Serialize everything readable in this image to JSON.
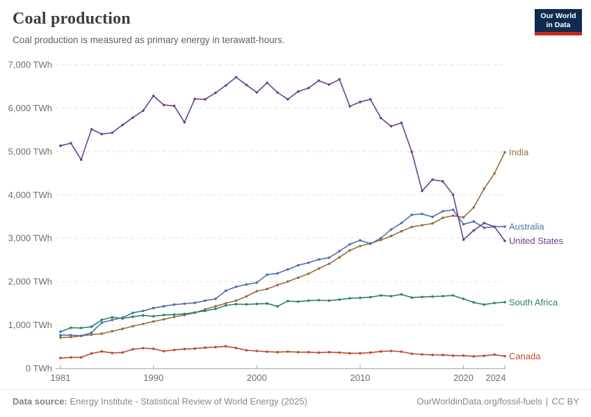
{
  "header": {
    "title": "Coal production",
    "subtitle": "Coal production is measured as primary energy in terawatt-hours."
  },
  "logo": {
    "line1": "Our World",
    "line2": "in Data"
  },
  "footer": {
    "source_label": "Data source:",
    "source_text": "Energy Institute - Statistical Review of World Energy (2025)",
    "url_text": "OurWorldinData.org/fossil-fuels",
    "separator": "|",
    "license": "CC BY"
  },
  "chart_data": {
    "type": "line",
    "title": "Coal production",
    "unit": "TWh",
    "grid": "horizontal-dashed",
    "legend_position": "end-of-line-labels-right",
    "ylim": [
      0,
      7000
    ],
    "xlim": [
      1981,
      2024
    ],
    "y_ticks": [
      0,
      1000,
      2000,
      3000,
      4000,
      5000,
      6000,
      7000
    ],
    "y_tick_labels": [
      "0 TWh",
      "1,000 TWh",
      "2,000 TWh",
      "3,000 TWh",
      "4,000 TWh",
      "5,000 TWh",
      "6,000 TWh",
      "7,000 TWh"
    ],
    "x_ticks": [
      1981,
      1990,
      2000,
      2010,
      2020,
      2024
    ],
    "x": [
      1981,
      1982,
      1983,
      1984,
      1985,
      1986,
      1987,
      1988,
      1989,
      1990,
      1991,
      1992,
      1993,
      1994,
      1995,
      1996,
      1997,
      1998,
      1999,
      2000,
      2001,
      2002,
      2003,
      2004,
      2005,
      2006,
      2007,
      2008,
      2009,
      2010,
      2011,
      2012,
      2013,
      2014,
      2015,
      2016,
      2017,
      2018,
      2019,
      2020,
      2021,
      2022,
      2023,
      2024
    ],
    "series": [
      {
        "name": "India",
        "color": "#996D39",
        "values": [
          710,
          720,
          748,
          775,
          800,
          855,
          910,
          970,
          1025,
          1080,
          1130,
          1185,
          1230,
          1280,
          1360,
          1430,
          1500,
          1560,
          1660,
          1780,
          1830,
          1920,
          2000,
          2090,
          2180,
          2300,
          2410,
          2560,
          2720,
          2820,
          2880,
          2960,
          3050,
          3160,
          3260,
          3300,
          3340,
          3470,
          3520,
          3480,
          3710,
          4140,
          4490,
          4980
        ]
      },
      {
        "name": "Australia",
        "color": "#4C6FAD",
        "values": [
          765,
          765,
          750,
          820,
          1055,
          1115,
          1170,
          1280,
          1325,
          1390,
          1430,
          1470,
          1490,
          1510,
          1560,
          1600,
          1790,
          1880,
          1935,
          1975,
          2160,
          2190,
          2280,
          2375,
          2435,
          2510,
          2550,
          2700,
          2860,
          2950,
          2870,
          3000,
          3200,
          3350,
          3540,
          3560,
          3490,
          3620,
          3655,
          3320,
          3385,
          3240,
          3265,
          3270
        ]
      },
      {
        "name": "United States",
        "color": "#6D3E91",
        "values": [
          5130,
          5190,
          4810,
          5510,
          5400,
          5430,
          5610,
          5780,
          5940,
          6280,
          6070,
          6050,
          5670,
          6210,
          6200,
          6350,
          6520,
          6710,
          6530,
          6360,
          6580,
          6360,
          6200,
          6380,
          6460,
          6630,
          6540,
          6660,
          6040,
          6140,
          6200,
          5770,
          5580,
          5660,
          4990,
          4090,
          4350,
          4310,
          4000,
          2965,
          3180,
          3350,
          3265,
          2940
        ]
      },
      {
        "name": "South Africa",
        "color": "#2C8465",
        "values": [
          845,
          935,
          930,
          960,
          1120,
          1175,
          1150,
          1190,
          1220,
          1200,
          1230,
          1240,
          1255,
          1290,
          1325,
          1370,
          1450,
          1480,
          1475,
          1485,
          1495,
          1430,
          1550,
          1540,
          1560,
          1570,
          1560,
          1585,
          1615,
          1625,
          1640,
          1680,
          1665,
          1705,
          1630,
          1645,
          1655,
          1665,
          1680,
          1600,
          1520,
          1470,
          1505,
          1525
        ]
      },
      {
        "name": "Canada",
        "color": "#BE4B2D",
        "values": [
          238,
          252,
          252,
          342,
          390,
          355,
          365,
          440,
          465,
          452,
          395,
          425,
          445,
          455,
          478,
          490,
          507,
          470,
          416,
          400,
          384,
          373,
          384,
          373,
          373,
          363,
          373,
          363,
          347,
          347,
          363,
          389,
          400,
          384,
          336,
          320,
          309,
          309,
          293,
          293,
          277,
          290,
          315,
          278
        ]
      }
    ]
  }
}
